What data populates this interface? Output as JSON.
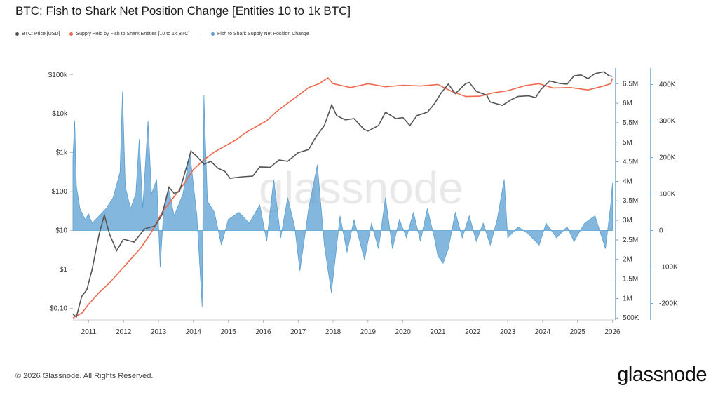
{
  "title": "BTC: Fish to Shark Net Position Change [Entities 10 to 1k BTC]",
  "legend": {
    "price": "BTC: Price [USD]",
    "supply": "Supply Held by Fish to Shark Entities [10 to 1k BTC]",
    "separator": "-",
    "change": "Fish to Shark Supply Net Position Change"
  },
  "footer": "© 2026 Glassnode. All Rights Reserved.",
  "brand": "glassnode",
  "watermark": "glassnode",
  "colors": {
    "price": "#555555",
    "supply": "#ee6a4f",
    "change": "#5a9fd1",
    "axis": "#4a8fc0"
  },
  "chart_data": {
    "type": "line",
    "xlim": [
      2010.55,
      2026.05
    ],
    "x_ticks": [
      "2011",
      "2012",
      "2013",
      "2014",
      "2015",
      "2016",
      "2017",
      "2018",
      "2019",
      "2020",
      "2021",
      "2022",
      "2023",
      "2024",
      "2025",
      "2026"
    ],
    "left_axis": {
      "label": "BTC: Price [USD]",
      "scale": "log",
      "range": [
        0.05,
        150000
      ],
      "ticks": [
        {
          "v": 100000,
          "t": "$100k"
        },
        {
          "v": 10000,
          "t": "$10k"
        },
        {
          "v": 1000,
          "t": "$1k"
        },
        {
          "v": 100,
          "t": "$100"
        },
        {
          "v": 10,
          "t": "$10"
        },
        {
          "v": 1,
          "t": "$1"
        },
        {
          "v": 0.1,
          "t": "$0.10"
        }
      ]
    },
    "right_axis_1": {
      "label": "Supply Held by Fish to Shark Entities [10 to 1k BTC]",
      "range": [
        450000,
        6900000
      ],
      "ticks": [
        {
          "v": 6500000,
          "t": "6.5M"
        },
        {
          "v": 6000000,
          "t": "6M"
        },
        {
          "v": 5500000,
          "t": "5.5M"
        },
        {
          "v": 5000000,
          "t": "5M"
        },
        {
          "v": 4500000,
          "t": "4.5M"
        },
        {
          "v": 4000000,
          "t": "4M"
        },
        {
          "v": 3500000,
          "t": "3.5M"
        },
        {
          "v": 3000000,
          "t": "3M"
        },
        {
          "v": 2500000,
          "t": "2.5M"
        },
        {
          "v": 2000000,
          "t": "2M"
        },
        {
          "v": 1500000,
          "t": "1.5M"
        },
        {
          "v": 1000000,
          "t": "1M"
        },
        {
          "v": 500000,
          "t": "500K"
        }
      ]
    },
    "right_axis_2": {
      "label": "Fish to Shark Supply Net Position Change",
      "range": [
        -245000,
        445000
      ],
      "ticks": [
        {
          "v": 400000,
          "t": "400K"
        },
        {
          "v": 300000,
          "t": "300K"
        },
        {
          "v": 200000,
          "t": "200K"
        },
        {
          "v": 100000,
          "t": "100K"
        },
        {
          "v": 0,
          "t": "0"
        },
        {
          "v": -100000,
          "t": "-100K"
        },
        {
          "v": -200000,
          "t": "-200K"
        }
      ]
    },
    "series": [
      {
        "name": "BTC: Price [USD]",
        "type": "line",
        "axis": "left",
        "points": [
          [
            2010.55,
            0.07
          ],
          [
            2010.65,
            0.06
          ],
          [
            2010.8,
            0.2
          ],
          [
            2010.95,
            0.3
          ],
          [
            2011.1,
            1
          ],
          [
            2011.3,
            8
          ],
          [
            2011.45,
            25
          ],
          [
            2011.6,
            8
          ],
          [
            2011.8,
            3
          ],
          [
            2012.0,
            6
          ],
          [
            2012.3,
            5
          ],
          [
            2012.6,
            11
          ],
          [
            2012.9,
            13
          ],
          [
            2013.1,
            25
          ],
          [
            2013.3,
            130
          ],
          [
            2013.45,
            90
          ],
          [
            2013.6,
            100
          ],
          [
            2013.85,
            600
          ],
          [
            2013.93,
            1100
          ],
          [
            2014.1,
            800
          ],
          [
            2014.3,
            500
          ],
          [
            2014.5,
            600
          ],
          [
            2014.7,
            400
          ],
          [
            2014.9,
            330
          ],
          [
            2015.05,
            220
          ],
          [
            2015.4,
            240
          ],
          [
            2015.7,
            250
          ],
          [
            2015.9,
            430
          ],
          [
            2016.2,
            420
          ],
          [
            2016.45,
            650
          ],
          [
            2016.7,
            600
          ],
          [
            2017.0,
            1000
          ],
          [
            2017.3,
            1200
          ],
          [
            2017.5,
            2500
          ],
          [
            2017.75,
            5000
          ],
          [
            2017.96,
            17000
          ],
          [
            2018.1,
            9000
          ],
          [
            2018.35,
            7000
          ],
          [
            2018.6,
            7500
          ],
          [
            2018.88,
            4000
          ],
          [
            2019.0,
            3600
          ],
          [
            2019.3,
            5000
          ],
          [
            2019.5,
            11000
          ],
          [
            2019.8,
            7500
          ],
          [
            2020.0,
            8000
          ],
          [
            2020.2,
            5000
          ],
          [
            2020.4,
            9000
          ],
          [
            2020.7,
            11000
          ],
          [
            2020.9,
            18000
          ],
          [
            2021.1,
            35000
          ],
          [
            2021.3,
            58000
          ],
          [
            2021.5,
            33000
          ],
          [
            2021.8,
            60000
          ],
          [
            2021.9,
            64000
          ],
          [
            2022.1,
            38000
          ],
          [
            2022.4,
            30000
          ],
          [
            2022.5,
            20000
          ],
          [
            2022.85,
            16500
          ],
          [
            2023.1,
            23000
          ],
          [
            2023.3,
            28000
          ],
          [
            2023.6,
            29000
          ],
          [
            2023.8,
            26000
          ],
          [
            2023.95,
            42000
          ],
          [
            2024.2,
            70000
          ],
          [
            2024.5,
            60000
          ],
          [
            2024.7,
            58000
          ],
          [
            2024.9,
            95000
          ],
          [
            2025.1,
            100000
          ],
          [
            2025.3,
            80000
          ],
          [
            2025.5,
            108000
          ],
          [
            2025.75,
            120000
          ],
          [
            2025.9,
            95000
          ],
          [
            2026.0,
            92000
          ]
        ]
      },
      {
        "name": "Supply Held by Fish to Shark Entities [10 to 1k BTC]",
        "type": "line",
        "axis": "right_1",
        "points": [
          [
            2010.55,
            500000
          ],
          [
            2010.8,
            620000
          ],
          [
            2011.0,
            850000
          ],
          [
            2011.3,
            1150000
          ],
          [
            2011.6,
            1400000
          ],
          [
            2011.9,
            1700000
          ],
          [
            2012.2,
            2000000
          ],
          [
            2012.5,
            2300000
          ],
          [
            2012.8,
            2700000
          ],
          [
            2013.1,
            3200000
          ],
          [
            2013.4,
            3550000
          ],
          [
            2013.7,
            3900000
          ],
          [
            2014.0,
            4300000
          ],
          [
            2014.3,
            4550000
          ],
          [
            2014.6,
            4750000
          ],
          [
            2014.9,
            4900000
          ],
          [
            2015.2,
            5050000
          ],
          [
            2015.5,
            5250000
          ],
          [
            2015.8,
            5400000
          ],
          [
            2016.1,
            5550000
          ],
          [
            2016.4,
            5800000
          ],
          [
            2016.7,
            6000000
          ],
          [
            2017.0,
            6200000
          ],
          [
            2017.3,
            6400000
          ],
          [
            2017.6,
            6500000
          ],
          [
            2017.85,
            6650000
          ],
          [
            2018.0,
            6500000
          ],
          [
            2018.5,
            6400000
          ],
          [
            2019.0,
            6500000
          ],
          [
            2019.5,
            6420000
          ],
          [
            2020.0,
            6460000
          ],
          [
            2020.5,
            6440000
          ],
          [
            2021.0,
            6480000
          ],
          [
            2021.4,
            6300000
          ],
          [
            2021.8,
            6170000
          ],
          [
            2022.2,
            6180000
          ],
          [
            2022.6,
            6270000
          ],
          [
            2023.0,
            6320000
          ],
          [
            2023.5,
            6450000
          ],
          [
            2023.9,
            6500000
          ],
          [
            2024.3,
            6390000
          ],
          [
            2024.8,
            6400000
          ],
          [
            2025.3,
            6340000
          ],
          [
            2025.7,
            6430000
          ],
          [
            2025.95,
            6500000
          ],
          [
            2026.0,
            6640000
          ]
        ]
      },
      {
        "name": "Fish to Shark Supply Net Position Change",
        "type": "area",
        "axis": "right_2",
        "points": [
          [
            2010.55,
            200000
          ],
          [
            2010.6,
            300000
          ],
          [
            2010.65,
            120000
          ],
          [
            2010.75,
            60000
          ],
          [
            2010.9,
            30000
          ],
          [
            2011.0,
            45000
          ],
          [
            2011.1,
            20000
          ],
          [
            2011.3,
            40000
          ],
          [
            2011.5,
            60000
          ],
          [
            2011.7,
            90000
          ],
          [
            2011.9,
            160000
          ],
          [
            2011.97,
            380000
          ],
          [
            2012.05,
            120000
          ],
          [
            2012.2,
            60000
          ],
          [
            2012.35,
            100000
          ],
          [
            2012.45,
            250000
          ],
          [
            2012.55,
            60000
          ],
          [
            2012.7,
            300000
          ],
          [
            2012.8,
            100000
          ],
          [
            2012.95,
            140000
          ],
          [
            2013.05,
            -100000
          ],
          [
            2013.15,
            60000
          ],
          [
            2013.3,
            110000
          ],
          [
            2013.45,
            40000
          ],
          [
            2013.7,
            100000
          ],
          [
            2013.9,
            210000
          ],
          [
            2014.1,
            40000
          ],
          [
            2014.25,
            -210000
          ],
          [
            2014.3,
            370000
          ],
          [
            2014.4,
            80000
          ],
          [
            2014.6,
            50000
          ],
          [
            2014.8,
            -40000
          ],
          [
            2015.0,
            30000
          ],
          [
            2015.3,
            50000
          ],
          [
            2015.6,
            20000
          ],
          [
            2015.9,
            70000
          ],
          [
            2016.1,
            -30000
          ],
          [
            2016.3,
            140000
          ],
          [
            2016.5,
            -20000
          ],
          [
            2016.7,
            90000
          ],
          [
            2016.9,
            10000
          ],
          [
            2017.05,
            -110000
          ],
          [
            2017.3,
            60000
          ],
          [
            2017.55,
            180000
          ],
          [
            2017.75,
            -40000
          ],
          [
            2017.95,
            -170000
          ],
          [
            2018.2,
            40000
          ],
          [
            2018.4,
            -60000
          ],
          [
            2018.6,
            30000
          ],
          [
            2018.9,
            -80000
          ],
          [
            2019.1,
            20000
          ],
          [
            2019.3,
            -50000
          ],
          [
            2019.5,
            90000
          ],
          [
            2019.7,
            -50000
          ],
          [
            2019.9,
            30000
          ],
          [
            2020.1,
            -20000
          ],
          [
            2020.3,
            50000
          ],
          [
            2020.5,
            -30000
          ],
          [
            2020.7,
            60000
          ],
          [
            2020.9,
            -20000
          ],
          [
            2021.0,
            -70000
          ],
          [
            2021.15,
            -90000
          ],
          [
            2021.3,
            -50000
          ],
          [
            2021.5,
            50000
          ],
          [
            2021.7,
            -20000
          ],
          [
            2021.9,
            40000
          ],
          [
            2022.1,
            -30000
          ],
          [
            2022.3,
            20000
          ],
          [
            2022.5,
            -40000
          ],
          [
            2022.7,
            30000
          ],
          [
            2022.9,
            140000
          ],
          [
            2023.0,
            -20000
          ],
          [
            2023.3,
            10000
          ],
          [
            2023.6,
            -10000
          ],
          [
            2023.9,
            -40000
          ],
          [
            2024.1,
            20000
          ],
          [
            2024.4,
            -20000
          ],
          [
            2024.7,
            10000
          ],
          [
            2024.9,
            -30000
          ],
          [
            2025.2,
            20000
          ],
          [
            2025.5,
            40000
          ],
          [
            2025.8,
            -50000
          ],
          [
            2025.95,
            70000
          ],
          [
            2026.0,
            130000
          ]
        ]
      }
    ],
    "grid": false,
    "legend_position": "top-left"
  }
}
